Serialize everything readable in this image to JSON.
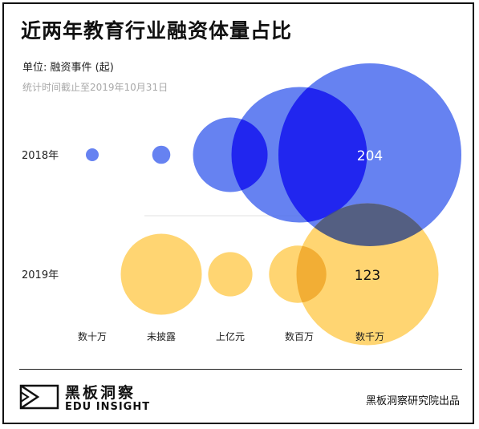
{
  "header": {
    "title": "近两年教育行业融资体量占比",
    "unit": "单位: 融资事件 (起)",
    "note": "统计时间截止至2019年10月31日"
  },
  "footer": {
    "logo_cn": "黑板洞察",
    "logo_en": "EDU INSIGHT",
    "source": "黑板洞察研究院出品"
  },
  "colors": {
    "series_2018": "#4466ee",
    "series_2019": "#ffc94a",
    "overlap_2018": "#1a1aee",
    "overlap_2019": "#3c4f86"
  },
  "chart_data": {
    "type": "bubble",
    "title": "近两年教育行业融资体量占比",
    "categories": [
      "数十万",
      "未披露",
      "上亿元",
      "数百万",
      "数千万"
    ],
    "series": [
      {
        "name": "2018年",
        "values": [
          1,
          2,
          34,
          112,
          204
        ]
      },
      {
        "name": "2019年",
        "values": [
          null,
          40,
          12,
          20,
          123
        ]
      }
    ],
    "data_labels": {
      "2018年": {
        "数千万": "204"
      },
      "2019年": {
        "数千万": "123"
      }
    },
    "legend": "none",
    "grid": false
  }
}
